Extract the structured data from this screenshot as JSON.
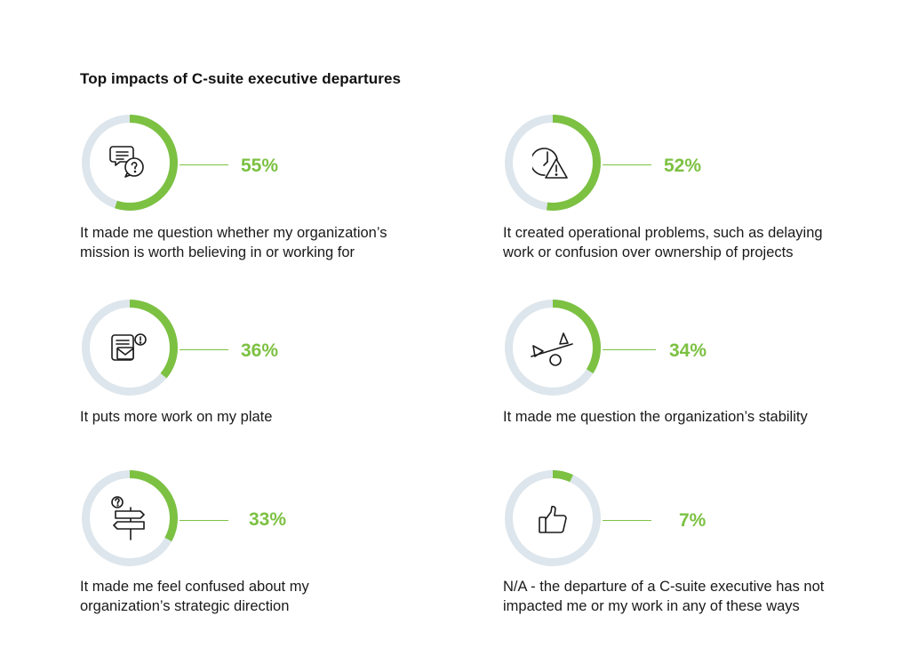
{
  "chart_data": {
    "type": "donut",
    "title": "Top impacts of C-suite executive departures",
    "items": [
      {
        "label": "It made me question whether my organization’s mission is worth believing in or working for",
        "value": 55,
        "display": "55%",
        "icon": "chat-question-icon",
        "label_lines": [
          "It made me question whether my organization’s",
          "mission is worth believing in or working for"
        ]
      },
      {
        "label": "It created operational problems, such as delaying work or confusion over ownership of projects",
        "value": 52,
        "display": "52%",
        "icon": "clock-warning-icon",
        "label_lines": [
          "It created operational problems, such as delaying",
          "work or confusion over ownership of projects"
        ]
      },
      {
        "label": "It puts more work on my plate",
        "value": 36,
        "display": "36%",
        "icon": "inbox-alert-icon",
        "label_lines": [
          "It puts more work on my plate"
        ]
      },
      {
        "label": "It made me question the organization’s stability",
        "value": 34,
        "display": "34%",
        "icon": "seesaw-icon",
        "label_lines": [
          "It made me question the organization’s stability"
        ]
      },
      {
        "label": "It made me feel confused about my organization’s strategic direction",
        "value": 33,
        "display": "33%",
        "icon": "signpost-question-icon",
        "label_lines": [
          "It made me feel confused about my",
          "organization’s strategic direction"
        ]
      },
      {
        "label": "N/A - the departure of a C-suite executive has not impacted me or my work in any of these ways",
        "value": 7,
        "display": "7%",
        "icon": "thumbs-up-icon",
        "label_lines": [
          "N/A - the departure of a C-suite executive has not",
          "impacted me or my work in any of these ways"
        ]
      }
    ]
  },
  "colors": {
    "accent": "#7cc142",
    "track": "#dde6ec",
    "text": "#1a1a1a"
  }
}
